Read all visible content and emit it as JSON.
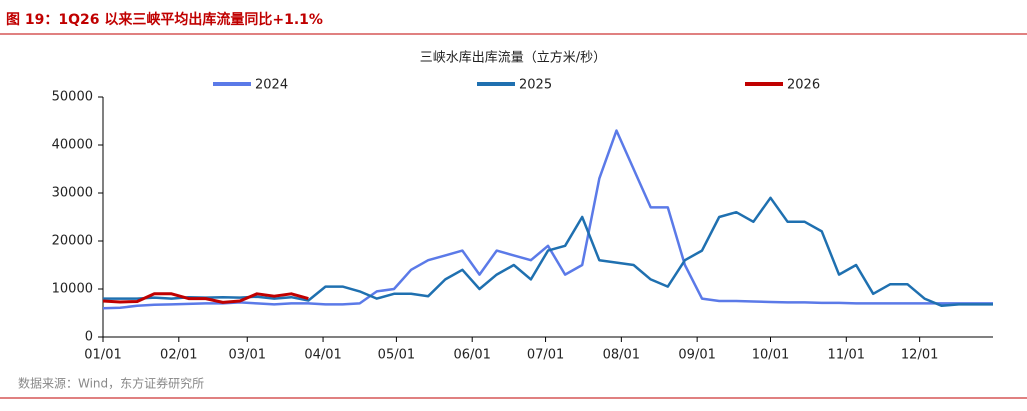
{
  "figure_title": "图 19：1Q26 以来三峡平均出库流量同比+1.1%",
  "source": "数据来源：Wind，东方证券研究所",
  "chart_data": {
    "type": "line",
    "title": "三峡水库出库流量（立方米/秒）",
    "x": [
      "01/01",
      "01/08",
      "01/15",
      "01/22",
      "01/29",
      "02/05",
      "02/12",
      "02/19",
      "02/26",
      "03/05",
      "03/12",
      "03/19",
      "03/26",
      "04/02",
      "04/09",
      "04/16",
      "04/23",
      "04/30",
      "05/07",
      "05/14",
      "05/21",
      "05/28",
      "06/04",
      "06/11",
      "06/18",
      "06/25",
      "07/02",
      "07/09",
      "07/16",
      "07/23",
      "07/30",
      "08/06",
      "08/13",
      "08/20",
      "08/27",
      "09/03",
      "09/10",
      "09/17",
      "09/24",
      "10/01",
      "10/08",
      "10/15",
      "10/22",
      "10/29",
      "11/05",
      "11/12",
      "11/19",
      "11/26",
      "12/03",
      "12/10",
      "12/17",
      "12/24",
      "12/31"
    ],
    "series": [
      {
        "name": "2024",
        "color": "#5b7ae8",
        "values": [
          6000,
          6100,
          6500,
          6700,
          6800,
          6900,
          7000,
          7000,
          7200,
          7000,
          6800,
          7000,
          7000,
          6800,
          6800,
          7000,
          9500,
          10000,
          14000,
          16000,
          17000,
          18000,
          13000,
          18000,
          17000,
          16000,
          19000,
          13000,
          15000,
          33000,
          43000,
          35000,
          27000,
          27000,
          15000,
          8000,
          7500,
          7500,
          7400,
          7300,
          7200,
          7200,
          7100,
          7100,
          7000,
          7000,
          7000,
          7000,
          7000,
          7000,
          7000,
          7000,
          7000
        ]
      },
      {
        "name": "2025",
        "color": "#1f70b0",
        "values": [
          8000,
          8000,
          8000,
          8200,
          8000,
          8300,
          8200,
          8300,
          8200,
          8400,
          8000,
          8300,
          7600,
          10500,
          10500,
          9500,
          8000,
          9000,
          9000,
          8500,
          12000,
          14000,
          10000,
          13000,
          15000,
          12000,
          18000,
          19000,
          25000,
          16000,
          15500,
          15000,
          12000,
          10500,
          16000,
          18000,
          25000,
          26000,
          24000,
          29000,
          24000,
          24000,
          22000,
          13000,
          15000,
          9000,
          11000,
          11000,
          8000,
          6500,
          6800,
          6800,
          6800
        ]
      },
      {
        "name": "2026",
        "color": "#c00000",
        "values": [
          7500,
          7300,
          7400,
          9000,
          9000,
          8000,
          8000,
          7200,
          7500,
          9000,
          8500,
          9000,
          8000,
          null,
          null,
          null,
          null,
          null,
          null,
          null,
          null,
          null,
          null,
          null,
          null,
          null,
          null,
          null,
          null,
          null,
          null,
          null,
          null,
          null,
          null,
          null,
          null,
          null,
          null,
          null,
          null,
          null,
          null,
          null,
          null,
          null,
          null,
          null,
          null,
          null,
          null,
          null,
          null
        ]
      }
    ],
    "ylim": [
      0,
      50000
    ],
    "yticks": [
      0,
      10000,
      20000,
      30000,
      40000,
      50000
    ],
    "xticks": [
      "01/01",
      "02/01",
      "03/01",
      "04/01",
      "05/01",
      "06/01",
      "07/01",
      "08/01",
      "09/01",
      "10/01",
      "11/01",
      "12/01"
    ],
    "grid": false
  }
}
